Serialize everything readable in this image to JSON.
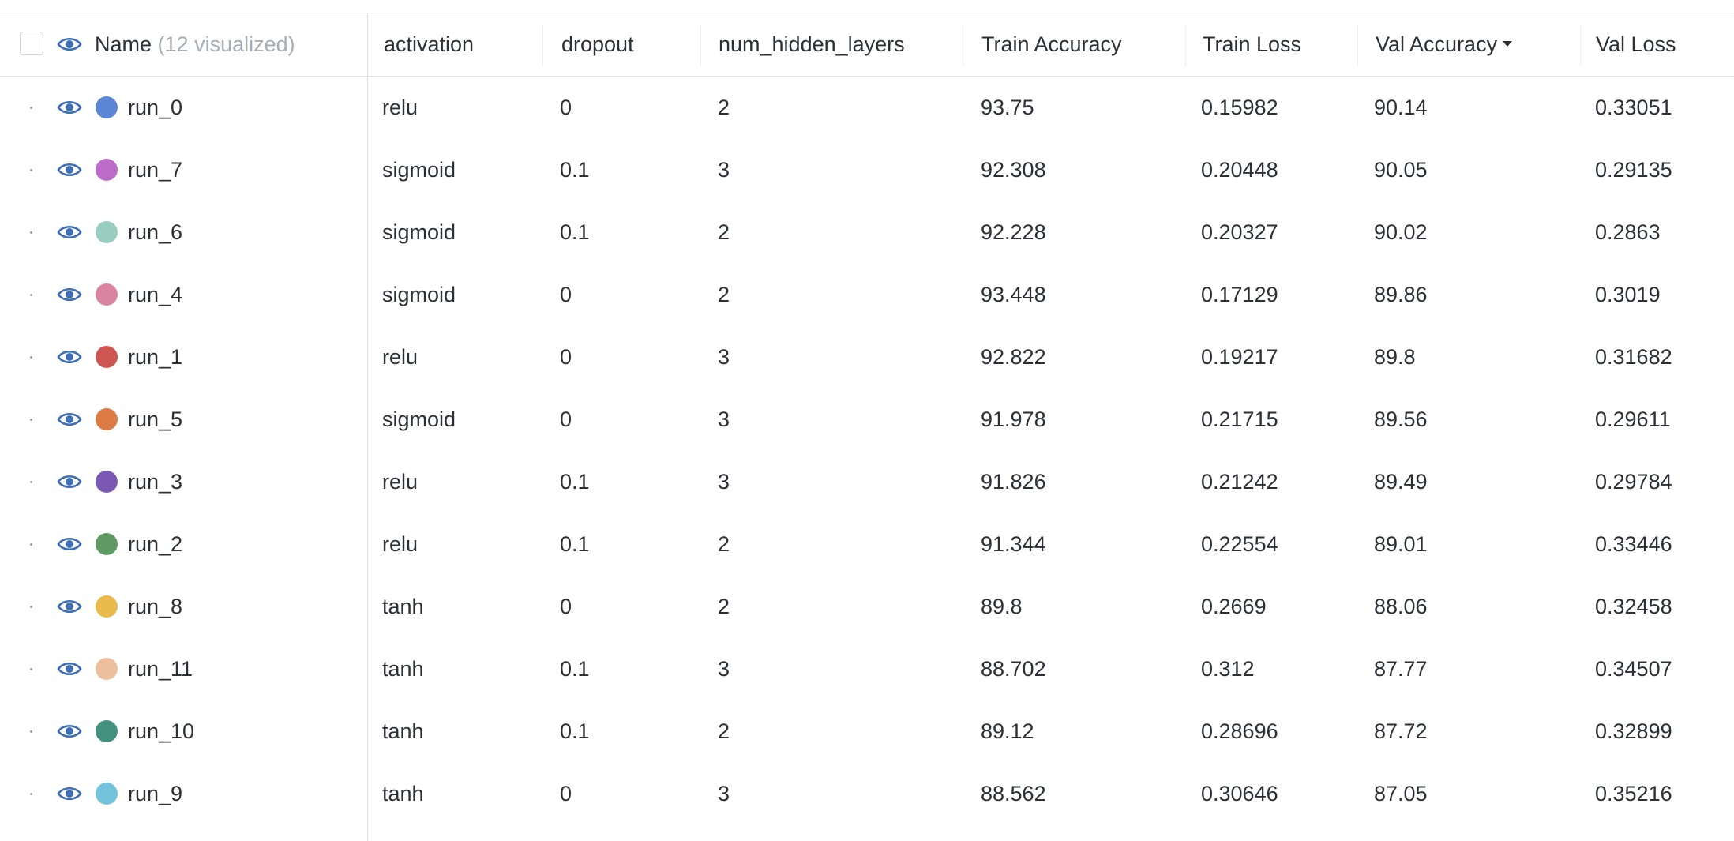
{
  "header": {
    "name_label": "Name",
    "visualized_label": "(12 visualized)",
    "columns": [
      {
        "label": "activation",
        "sorted": false
      },
      {
        "label": "dropout",
        "sorted": false
      },
      {
        "label": "num_hidden_layers",
        "sorted": false
      },
      {
        "label": "Train Accuracy",
        "sorted": false
      },
      {
        "label": "Train Loss",
        "sorted": false
      },
      {
        "label": "Val Accuracy",
        "sorted": true
      },
      {
        "label": "Val Loss",
        "sorted": false
      }
    ]
  },
  "icons": {
    "visibility": "eye-icon",
    "sort": "caret-down-icon"
  },
  "colors": {
    "eye": "#3f6fb6"
  },
  "rows": [
    {
      "name": "run_0",
      "color": "#5b86d6",
      "activation": "relu",
      "dropout": "0",
      "num_hidden_layers": "2",
      "train_accuracy": "93.75",
      "train_loss": "0.15982",
      "val_accuracy": "90.14",
      "val_loss": "0.33051"
    },
    {
      "name": "run_7",
      "color": "#be6ccb",
      "activation": "sigmoid",
      "dropout": "0.1",
      "num_hidden_layers": "3",
      "train_accuracy": "92.308",
      "train_loss": "0.20448",
      "val_accuracy": "90.05",
      "val_loss": "0.29135"
    },
    {
      "name": "run_6",
      "color": "#98cdbf",
      "activation": "sigmoid",
      "dropout": "0.1",
      "num_hidden_layers": "2",
      "train_accuracy": "92.228",
      "train_loss": "0.20327",
      "val_accuracy": "90.02",
      "val_loss": "0.2863"
    },
    {
      "name": "run_4",
      "color": "#db84a2",
      "activation": "sigmoid",
      "dropout": "0",
      "num_hidden_layers": "2",
      "train_accuracy": "93.448",
      "train_loss": "0.17129",
      "val_accuracy": "89.86",
      "val_loss": "0.3019"
    },
    {
      "name": "run_1",
      "color": "#cd5652",
      "activation": "relu",
      "dropout": "0",
      "num_hidden_layers": "3",
      "train_accuracy": "92.822",
      "train_loss": "0.19217",
      "val_accuracy": "89.8",
      "val_loss": "0.31682"
    },
    {
      "name": "run_5",
      "color": "#dc7b43",
      "activation": "sigmoid",
      "dropout": "0",
      "num_hidden_layers": "3",
      "train_accuracy": "91.978",
      "train_loss": "0.21715",
      "val_accuracy": "89.56",
      "val_loss": "0.29611"
    },
    {
      "name": "run_3",
      "color": "#7b58b3",
      "activation": "relu",
      "dropout": "0.1",
      "num_hidden_layers": "3",
      "train_accuracy": "91.826",
      "train_loss": "0.21242",
      "val_accuracy": "89.49",
      "val_loss": "0.29784"
    },
    {
      "name": "run_2",
      "color": "#5e9a62",
      "activation": "relu",
      "dropout": "0.1",
      "num_hidden_layers": "2",
      "train_accuracy": "91.344",
      "train_loss": "0.22554",
      "val_accuracy": "89.01",
      "val_loss": "0.33446"
    },
    {
      "name": "run_8",
      "color": "#e8b94b",
      "activation": "tanh",
      "dropout": "0",
      "num_hidden_layers": "2",
      "train_accuracy": "89.8",
      "train_loss": "0.2669",
      "val_accuracy": "88.06",
      "val_loss": "0.32458"
    },
    {
      "name": "run_11",
      "color": "#ecbf9f",
      "activation": "tanh",
      "dropout": "0.1",
      "num_hidden_layers": "3",
      "train_accuracy": "88.702",
      "train_loss": "0.312",
      "val_accuracy": "87.77",
      "val_loss": "0.34507"
    },
    {
      "name": "run_10",
      "color": "#45917f",
      "activation": "tanh",
      "dropout": "0.1",
      "num_hidden_layers": "2",
      "train_accuracy": "89.12",
      "train_loss": "0.28696",
      "val_accuracy": "87.72",
      "val_loss": "0.32899"
    },
    {
      "name": "run_9",
      "color": "#74c3dc",
      "activation": "tanh",
      "dropout": "0",
      "num_hidden_layers": "3",
      "train_accuracy": "88.562",
      "train_loss": "0.30646",
      "val_accuracy": "87.05",
      "val_loss": "0.35216"
    }
  ]
}
